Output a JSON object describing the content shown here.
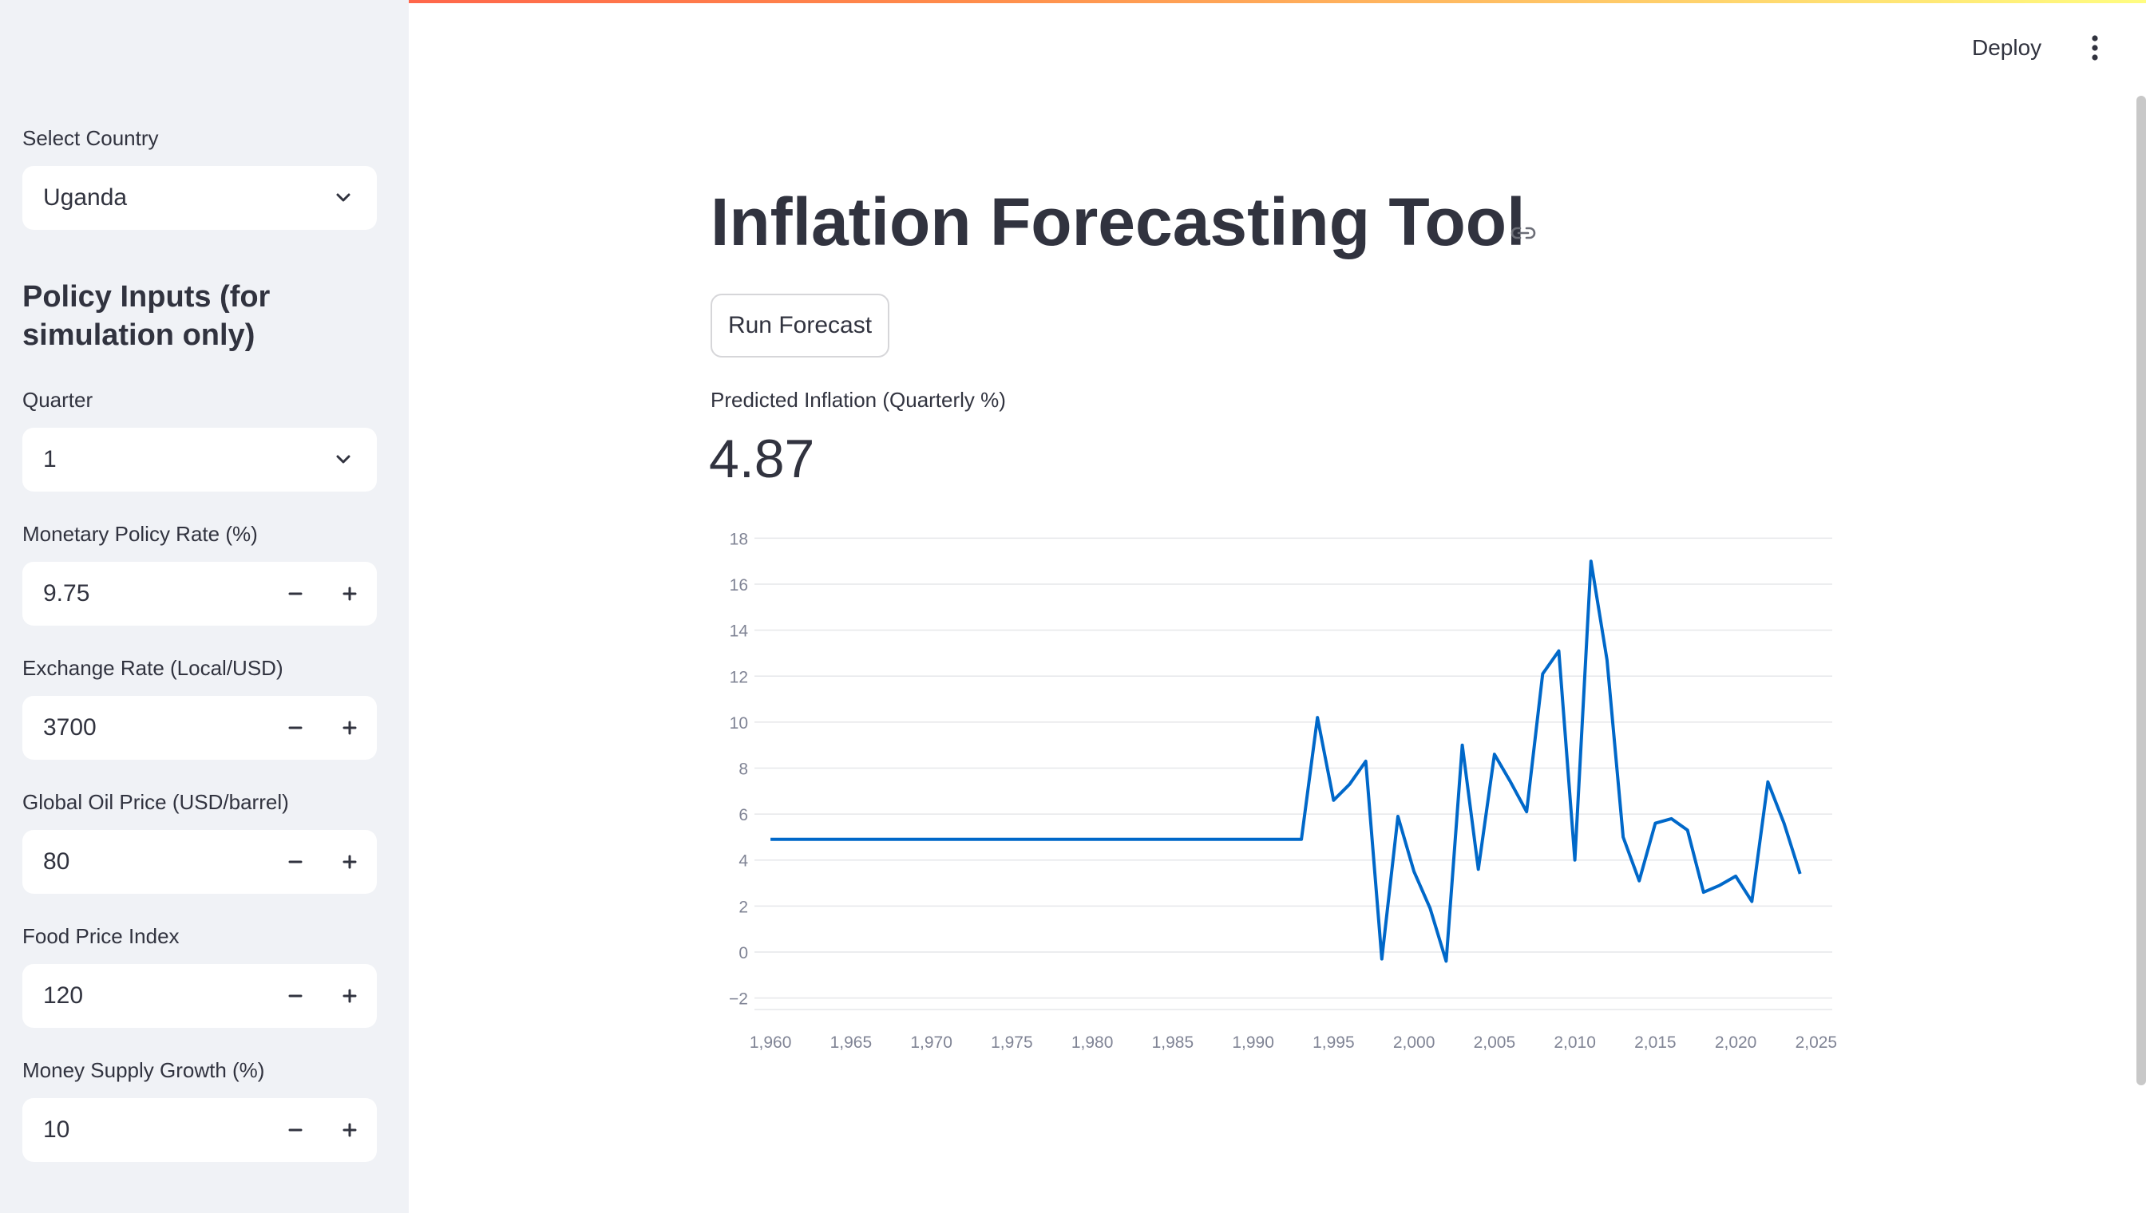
{
  "header": {
    "deploy_label": "Deploy"
  },
  "sidebar": {
    "country": {
      "label": "Select Country",
      "value": "Uganda"
    },
    "policy_heading": "Policy Inputs (for simulation only)",
    "quarter": {
      "label": "Quarter",
      "value": "1"
    },
    "numbers": [
      {
        "label": "Monetary Policy Rate (%)",
        "value": "9.75"
      },
      {
        "label": "Exchange Rate (Local/USD)",
        "value": "3700"
      },
      {
        "label": "Global Oil Price (USD/barrel)",
        "value": "80"
      },
      {
        "label": "Food Price Index",
        "value": "120"
      },
      {
        "label": "Money Supply Growth (%)",
        "value": "10"
      }
    ]
  },
  "main": {
    "title": "Inflation Forecasting Tool",
    "run_button": "Run Forecast",
    "metric": {
      "label": "Predicted Inflation (Quarterly %)",
      "value": "4.87"
    }
  },
  "colors": {
    "line": "#0068c9",
    "accent": "#ff4b4b",
    "sidebar_bg": "#f0f2f6"
  },
  "chart_data": {
    "type": "line",
    "title": "",
    "xlabel": "",
    "ylabel": "",
    "xlim": [
      1959,
      2026
    ],
    "ylim": [
      -2.5,
      18.5
    ],
    "x_ticks": [
      "1,960",
      "1,965",
      "1,970",
      "1,975",
      "1,980",
      "1,985",
      "1,990",
      "1,995",
      "2,000",
      "2,005",
      "2,010",
      "2,015",
      "2,020",
      "2,025"
    ],
    "x_tick_values": [
      1960,
      1965,
      1970,
      1975,
      1980,
      1985,
      1990,
      1995,
      2000,
      2005,
      2010,
      2015,
      2020,
      2025
    ],
    "y_ticks": [
      "18",
      "16",
      "14",
      "12",
      "10",
      "8",
      "6",
      "4",
      "2",
      "0",
      "−2"
    ],
    "y_tick_values": [
      18,
      16,
      14,
      12,
      10,
      8,
      6,
      4,
      2,
      0,
      -2
    ],
    "grid": true,
    "series": [
      {
        "x": [
          1960,
          1993,
          1994,
          1995,
          1996,
          1997,
          1998,
          1999,
          2000,
          2001,
          2002,
          2003,
          2004,
          2005,
          2006,
          2007,
          2008,
          2009,
          2010,
          2011,
          2012,
          2013,
          2014,
          2015,
          2016,
          2017,
          2018,
          2019,
          2020,
          2021,
          2022,
          2023,
          2024
        ],
        "values": [
          4.9,
          4.9,
          10.2,
          6.6,
          7.3,
          8.3,
          -0.3,
          5.9,
          3.5,
          1.9,
          -0.4,
          9.0,
          3.6,
          8.6,
          7.4,
          6.1,
          12.1,
          13.1,
          4.0,
          17.0,
          12.7,
          5.0,
          3.1,
          5.6,
          5.8,
          5.3,
          2.6,
          2.9,
          3.3,
          2.2,
          7.4,
          5.6,
          3.4
        ]
      }
    ]
  }
}
